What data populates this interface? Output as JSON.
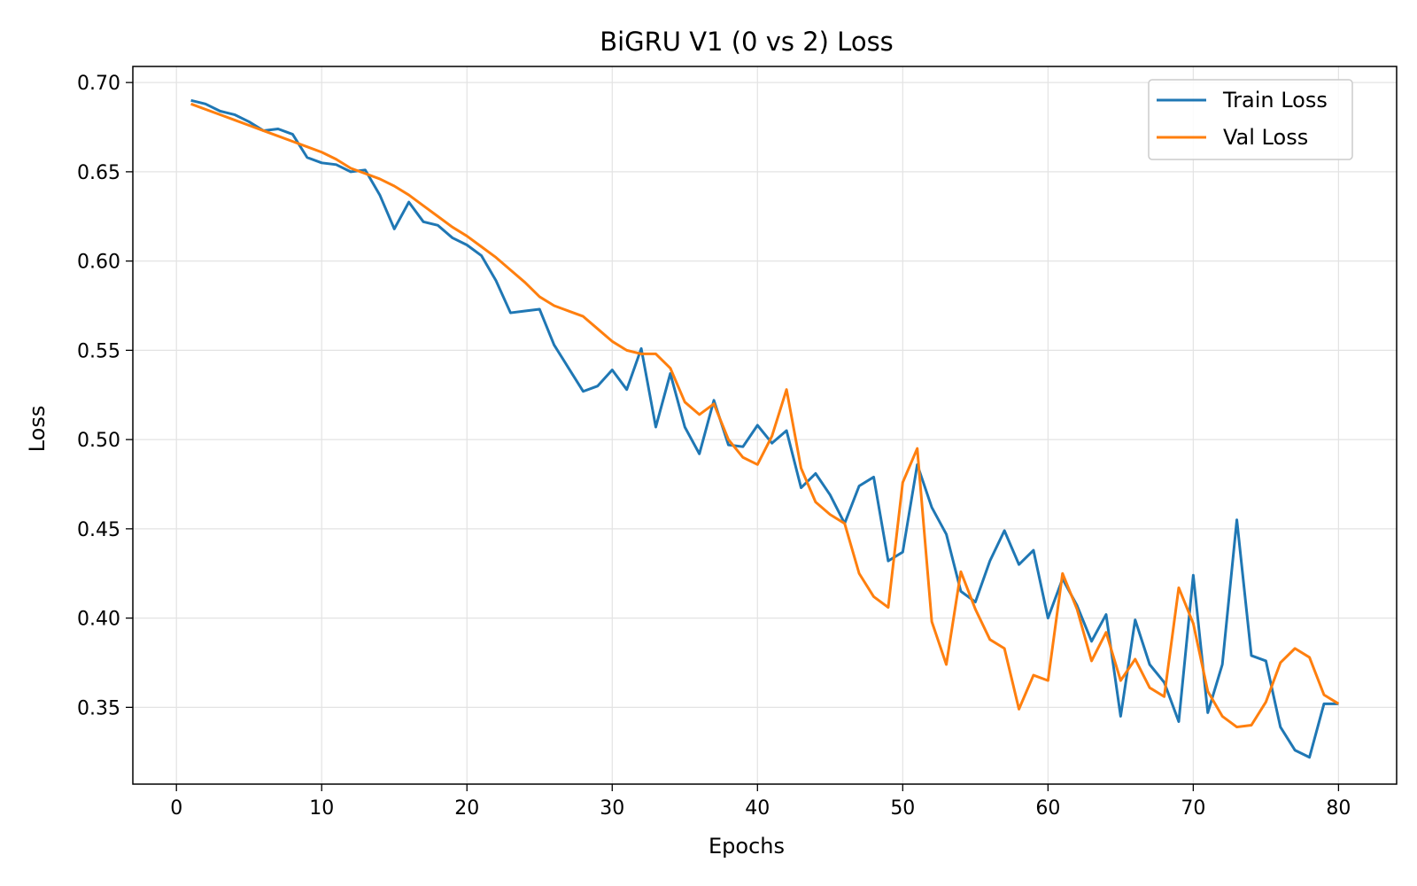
{
  "chart_data": {
    "type": "line",
    "title": "BiGRU V1 (0 vs 2) Loss",
    "xlabel": "Epochs",
    "ylabel": "Loss",
    "xlim": [
      -3,
      84
    ],
    "ylim": [
      0.307,
      0.709
    ],
    "xticks": [
      0,
      10,
      20,
      30,
      40,
      50,
      60,
      70,
      80
    ],
    "yticks": [
      0.35,
      0.4,
      0.45,
      0.5,
      0.55,
      0.6,
      0.65,
      0.7
    ],
    "xtick_labels": [
      "0",
      "10",
      "20",
      "30",
      "40",
      "50",
      "60",
      "70",
      "80"
    ],
    "ytick_labels": [
      "0.35",
      "0.40",
      "0.45",
      "0.50",
      "0.55",
      "0.60",
      "0.65",
      "0.70"
    ],
    "grid": true,
    "legend": "top-right",
    "x": [
      1,
      2,
      3,
      4,
      5,
      6,
      7,
      8,
      9,
      10,
      11,
      12,
      13,
      14,
      15,
      16,
      17,
      18,
      19,
      20,
      21,
      22,
      23,
      24,
      25,
      26,
      27,
      28,
      29,
      30,
      31,
      32,
      33,
      34,
      35,
      36,
      37,
      38,
      39,
      40,
      41,
      42,
      43,
      44,
      45,
      46,
      47,
      48,
      49,
      50,
      51,
      52,
      53,
      54,
      55,
      56,
      57,
      58,
      59,
      60,
      61,
      62,
      63,
      64,
      65,
      66,
      67,
      68,
      69,
      70,
      71,
      72,
      73,
      74,
      75,
      76,
      77,
      78,
      79,
      80
    ],
    "series": [
      {
        "name": "Train Loss",
        "color": "#1f77b4",
        "values": [
          0.69,
          0.688,
          0.684,
          0.682,
          0.678,
          0.673,
          0.674,
          0.671,
          0.658,
          0.655,
          0.654,
          0.65,
          0.651,
          0.637,
          0.618,
          0.633,
          0.622,
          0.62,
          0.613,
          0.609,
          0.603,
          0.589,
          0.571,
          0.572,
          0.573,
          0.553,
          0.54,
          0.527,
          0.53,
          0.539,
          0.528,
          0.551,
          0.507,
          0.537,
          0.507,
          0.492,
          0.522,
          0.497,
          0.496,
          0.508,
          0.498,
          0.505,
          0.473,
          0.481,
          0.469,
          0.453,
          0.474,
          0.479,
          0.432,
          0.437,
          0.486,
          0.462,
          0.447,
          0.415,
          0.409,
          0.432,
          0.449,
          0.43,
          0.438,
          0.4,
          0.422,
          0.407,
          0.387,
          0.402,
          0.345,
          0.399,
          0.374,
          0.364,
          0.342,
          0.424,
          0.347,
          0.374,
          0.455,
          0.379,
          0.376,
          0.339,
          0.326,
          0.322,
          0.352,
          0.352
        ]
      },
      {
        "name": "Val Loss",
        "color": "#ff7f0e",
        "values": [
          0.688,
          0.685,
          0.682,
          0.679,
          0.676,
          0.673,
          0.67,
          0.667,
          0.664,
          0.661,
          0.657,
          0.652,
          0.649,
          0.646,
          0.642,
          0.637,
          0.631,
          0.625,
          0.619,
          0.614,
          0.608,
          0.602,
          0.595,
          0.588,
          0.58,
          0.575,
          0.572,
          0.569,
          0.562,
          0.555,
          0.55,
          0.548,
          0.548,
          0.54,
          0.521,
          0.514,
          0.52,
          0.5,
          0.49,
          0.486,
          0.502,
          0.528,
          0.484,
          0.465,
          0.458,
          0.453,
          0.425,
          0.412,
          0.406,
          0.476,
          0.495,
          0.398,
          0.374,
          0.426,
          0.405,
          0.388,
          0.383,
          0.349,
          0.368,
          0.365,
          0.425,
          0.405,
          0.376,
          0.392,
          0.365,
          0.377,
          0.361,
          0.356,
          0.417,
          0.397,
          0.359,
          0.345,
          0.339,
          0.34,
          0.353,
          0.375,
          0.383,
          0.378,
          0.357,
          0.352
        ]
      }
    ]
  }
}
